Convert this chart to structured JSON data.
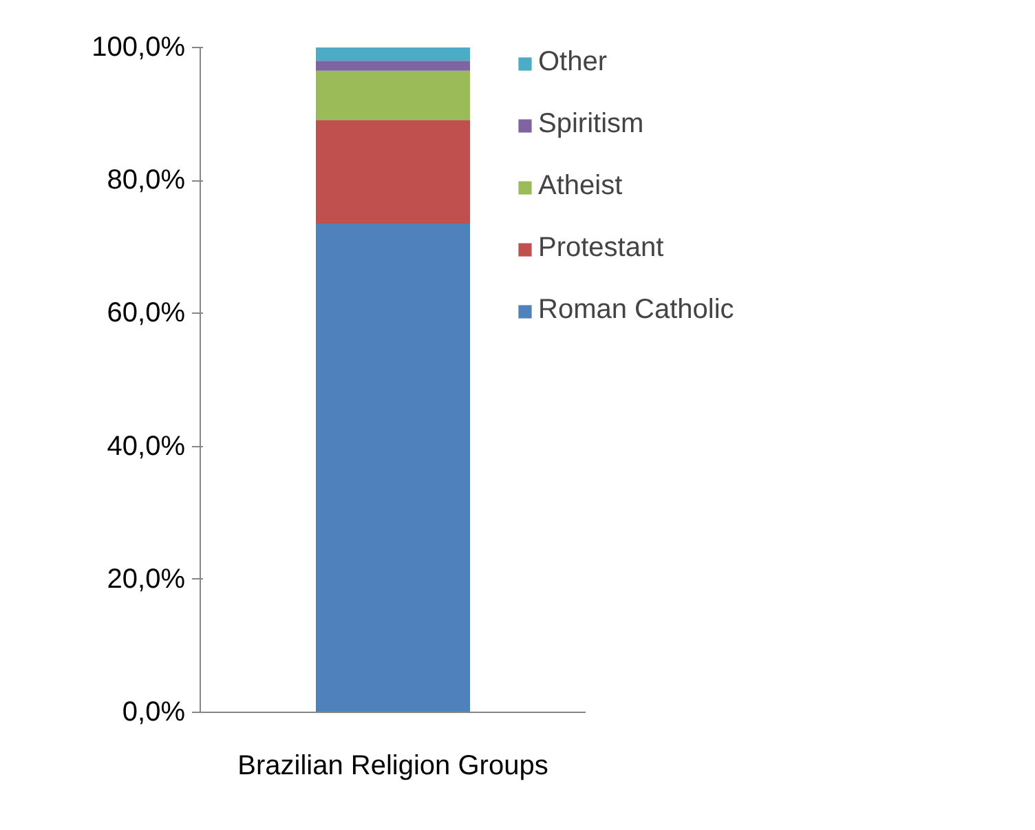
{
  "chart_data": {
    "type": "bar",
    "stacked": true,
    "categories": [
      "Brazilian Religion Groups"
    ],
    "series": [
      {
        "name": "Roman Catholic",
        "color": "#4f81bd",
        "values": [
          73.5
        ]
      },
      {
        "name": "Protestant",
        "color": "#c0504d",
        "values": [
          15.6
        ]
      },
      {
        "name": "Atheist",
        "color": "#9bbb59",
        "values": [
          7.4
        ]
      },
      {
        "name": "Spiritism",
        "color": "#8064a2",
        "values": [
          1.5
        ]
      },
      {
        "name": "Other",
        "color": "#4bacc6",
        "values": [
          2.0
        ]
      }
    ],
    "ylim": [
      0,
      100
    ],
    "yticks": [
      {
        "value": 0,
        "label": "0,0%"
      },
      {
        "value": 20,
        "label": "20,0%"
      },
      {
        "value": 40,
        "label": "40,0%"
      },
      {
        "value": 60,
        "label": "60,0%"
      },
      {
        "value": 80,
        "label": "80,0%"
      },
      {
        "value": 100,
        "label": "100,0%"
      }
    ],
    "grid": false,
    "legend": "right"
  }
}
